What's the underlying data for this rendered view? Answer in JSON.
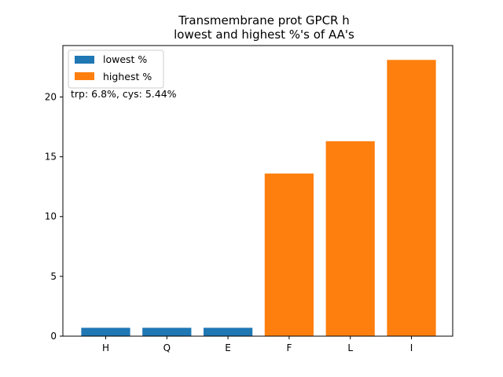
{
  "chart_data": {
    "type": "bar",
    "title_lines": [
      "Transmembrane prot GPCR h",
      "lowest and highest %'s of AA's"
    ],
    "xlabel": "",
    "ylabel": "",
    "categories": [
      "H",
      "Q",
      "E",
      "F",
      "L",
      "I"
    ],
    "series": [
      {
        "name": "lowest %",
        "color": "#1f77b4",
        "values": [
          0.7,
          0.7,
          0.7,
          null,
          null,
          null
        ]
      },
      {
        "name": "highest %",
        "color": "#ff7f0e",
        "values": [
          null,
          null,
          null,
          13.6,
          16.3,
          23.1
        ]
      }
    ],
    "ylim": [
      0,
      24.3
    ],
    "yticks": [
      0,
      5,
      10,
      15,
      20
    ],
    "grid": false,
    "legend_position": "upper-left",
    "annotation": "trp: 6.8%, cys: 5.44%"
  }
}
